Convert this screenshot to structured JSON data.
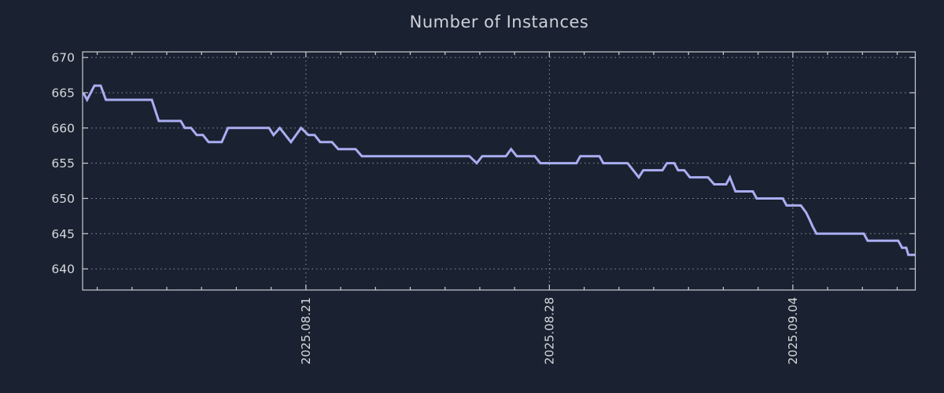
{
  "chart_data": {
    "type": "line",
    "title": "Number of Instances",
    "legend": "none",
    "grid": {
      "show": true,
      "style": "dotted"
    },
    "x_axis": {
      "unit": "days relative to 2025.08.21",
      "range_days": [
        -6.42,
        17.52
      ],
      "minor_tick_step_days": 1,
      "tick_labels": [
        {
          "label": "2025.08.21",
          "d": 0
        },
        {
          "label": "2025.08.28",
          "d": 7
        },
        {
          "label": "2025.09.04",
          "d": 14
        }
      ]
    },
    "y_axis": {
      "ticks": [
        640,
        645,
        650,
        655,
        660,
        665,
        670
      ],
      "range": [
        637.0,
        670.8
      ]
    },
    "series": [
      {
        "name": "instances",
        "points": [
          [
            -6.4,
            665
          ],
          [
            -6.29,
            664
          ],
          [
            -6.08,
            666
          ],
          [
            -5.9,
            666
          ],
          [
            -5.75,
            664
          ],
          [
            -4.43,
            664
          ],
          [
            -4.23,
            661
          ],
          [
            -3.6,
            661
          ],
          [
            -3.48,
            660
          ],
          [
            -3.3,
            660
          ],
          [
            -3.14,
            659
          ],
          [
            -2.96,
            659
          ],
          [
            -2.8,
            658
          ],
          [
            -2.42,
            658
          ],
          [
            -2.24,
            660
          ],
          [
            -1.06,
            660
          ],
          [
            -0.93,
            659
          ],
          [
            -0.75,
            660
          ],
          [
            -0.43,
            658
          ],
          [
            -0.14,
            660
          ],
          [
            0.07,
            659
          ],
          [
            0.25,
            659
          ],
          [
            0.41,
            658
          ],
          [
            0.75,
            658
          ],
          [
            0.93,
            657
          ],
          [
            1.43,
            657
          ],
          [
            1.61,
            656
          ],
          [
            4.7,
            656
          ],
          [
            4.91,
            655
          ],
          [
            5.07,
            656
          ],
          [
            5.75,
            656
          ],
          [
            5.9,
            657
          ],
          [
            6.06,
            656
          ],
          [
            6.58,
            656
          ],
          [
            6.74,
            655
          ],
          [
            7.78,
            655
          ],
          [
            7.89,
            656
          ],
          [
            8.44,
            656
          ],
          [
            8.55,
            655
          ],
          [
            9.25,
            655
          ],
          [
            9.57,
            653
          ],
          [
            9.7,
            654
          ],
          [
            10.25,
            654
          ],
          [
            10.38,
            655
          ],
          [
            10.59,
            655
          ],
          [
            10.7,
            654
          ],
          [
            10.88,
            654
          ],
          [
            11.04,
            653
          ],
          [
            11.56,
            653
          ],
          [
            11.74,
            652
          ],
          [
            12.08,
            652
          ],
          [
            12.19,
            653
          ],
          [
            12.35,
            651
          ],
          [
            12.85,
            651
          ],
          [
            12.96,
            650
          ],
          [
            13.71,
            650
          ],
          [
            13.82,
            649
          ],
          [
            14.23,
            649
          ],
          [
            14.38,
            648
          ],
          [
            14.48,
            647
          ],
          [
            14.57,
            646
          ],
          [
            14.68,
            645
          ],
          [
            16.04,
            645
          ],
          [
            16.15,
            644
          ],
          [
            17.03,
            644
          ],
          [
            17.14,
            643
          ],
          [
            17.26,
            643
          ],
          [
            17.32,
            642
          ],
          [
            17.52,
            642
          ]
        ]
      }
    ]
  },
  "theme": {
    "background": "#1a2130",
    "line_color": "#a9adf1",
    "grid_color": "#8f969e",
    "border_color": "#c9cdd3",
    "label_color": "#d5d8dc",
    "title_color": "#ccd1d9"
  }
}
